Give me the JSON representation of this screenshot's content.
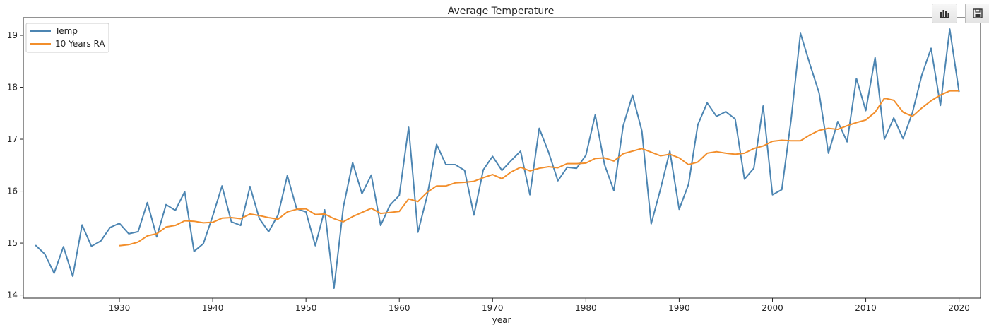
{
  "toolbar": {
    "icons": [
      "bar-chart-icon",
      "save-icon"
    ]
  },
  "chart_data": {
    "type": "line",
    "title": "Average Temperature",
    "xlabel": "year",
    "ylabel": "",
    "xlim": [
      1919.7,
      2022.3
    ],
    "ylim": [
      13.94,
      19.34
    ],
    "xticks": [
      1930,
      1940,
      1950,
      1960,
      1970,
      1980,
      1990,
      2000,
      2010,
      2020
    ],
    "yticks": [
      14,
      15,
      16,
      17,
      18,
      19
    ],
    "grid": false,
    "legend_position": "top-left",
    "series": [
      {
        "name": "Temp",
        "color": "#4c85b2",
        "x_start": 1921,
        "values": [
          14.96,
          14.79,
          14.42,
          14.93,
          14.36,
          15.35,
          14.94,
          15.04,
          15.3,
          15.38,
          15.18,
          15.22,
          15.78,
          15.12,
          15.74,
          15.63,
          15.99,
          14.84,
          14.99,
          15.52,
          16.1,
          15.41,
          15.34,
          16.09,
          15.47,
          15.22,
          15.54,
          16.3,
          15.66,
          15.6,
          14.95,
          15.64,
          14.13,
          15.69,
          16.55,
          15.95,
          16.31,
          15.34,
          15.73,
          15.92,
          17.23,
          15.21,
          15.92,
          16.9,
          16.51,
          16.51,
          16.4,
          15.54,
          16.41,
          16.67,
          16.4,
          16.59,
          16.77,
          15.93,
          17.21,
          16.75,
          16.2,
          16.46,
          16.44,
          16.69,
          17.47,
          16.51,
          16.01,
          17.26,
          17.85,
          17.16,
          15.37,
          16.04,
          16.77,
          15.65,
          16.13,
          17.28,
          17.7,
          17.44,
          17.53,
          17.39,
          16.23,
          16.44,
          17.64,
          15.93,
          16.03,
          17.38,
          19.04,
          18.45,
          17.89,
          16.73,
          17.34,
          16.95,
          18.17,
          17.55,
          18.57,
          17.0,
          17.41,
          17.01,
          17.51,
          18.23,
          18.75,
          17.65,
          19.12,
          17.91
        ]
      },
      {
        "name": "10 Years RA",
        "color": "#f28e2b",
        "x_start": 1930,
        "values": [
          14.95,
          14.97,
          15.02,
          15.14,
          15.18,
          15.31,
          15.34,
          15.43,
          15.42,
          15.39,
          15.4,
          15.48,
          15.49,
          15.47,
          15.56,
          15.53,
          15.49,
          15.46,
          15.6,
          15.65,
          15.66,
          15.55,
          15.56,
          15.47,
          15.41,
          15.51,
          15.59,
          15.67,
          15.57,
          15.59,
          15.61,
          15.85,
          15.8,
          15.98,
          16.1,
          16.1,
          16.16,
          16.17,
          16.19,
          16.26,
          16.32,
          16.24,
          16.37,
          16.46,
          16.39,
          16.44,
          16.47,
          16.45,
          16.53,
          16.53,
          16.54,
          16.63,
          16.64,
          16.58,
          16.72,
          16.77,
          16.82,
          16.75,
          16.68,
          16.71,
          16.64,
          16.51,
          16.56,
          16.73,
          16.76,
          16.73,
          16.71,
          16.73,
          16.82,
          16.87,
          16.96,
          16.98,
          16.97,
          16.97,
          17.08,
          17.17,
          17.21,
          17.19,
          17.26,
          17.32,
          17.37,
          17.52,
          17.79,
          17.75,
          17.52,
          17.44,
          17.6,
          17.74,
          17.85,
          17.93,
          17.93
        ]
      }
    ]
  }
}
